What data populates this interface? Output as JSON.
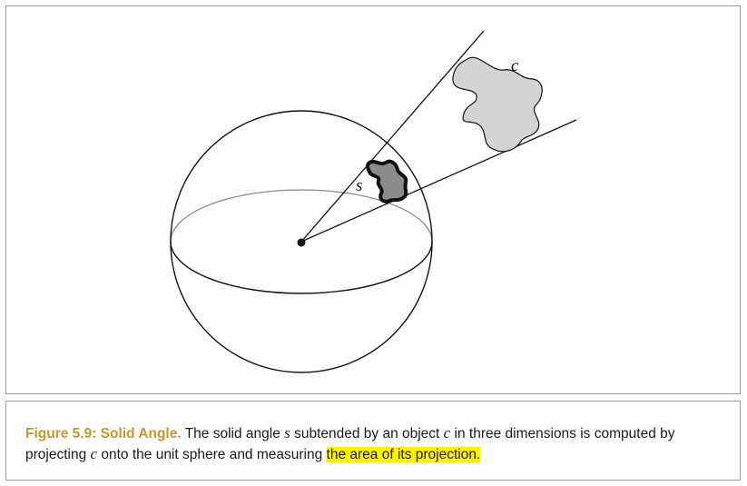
{
  "figure": {
    "labels": {
      "object": "c",
      "projection": "s"
    }
  },
  "caption": {
    "label": "Figure 5.9: Solid Angle.",
    "part1": " The solid angle ",
    "var_s": "s",
    "part2": " subtended by an object ",
    "var_c": "c",
    "part3": " in three dimensions is computed by projecting ",
    "var_c2": "c",
    "part4": " onto the unit sphere and measuring ",
    "highlighted": "the area of its projection."
  },
  "colors": {
    "caption_label": "#c9962a",
    "highlight": "#fff200",
    "shape_fill_light": "#d3d3d3",
    "shape_fill_dark": "#8c8c8c",
    "frame": "#9a9a9a"
  }
}
